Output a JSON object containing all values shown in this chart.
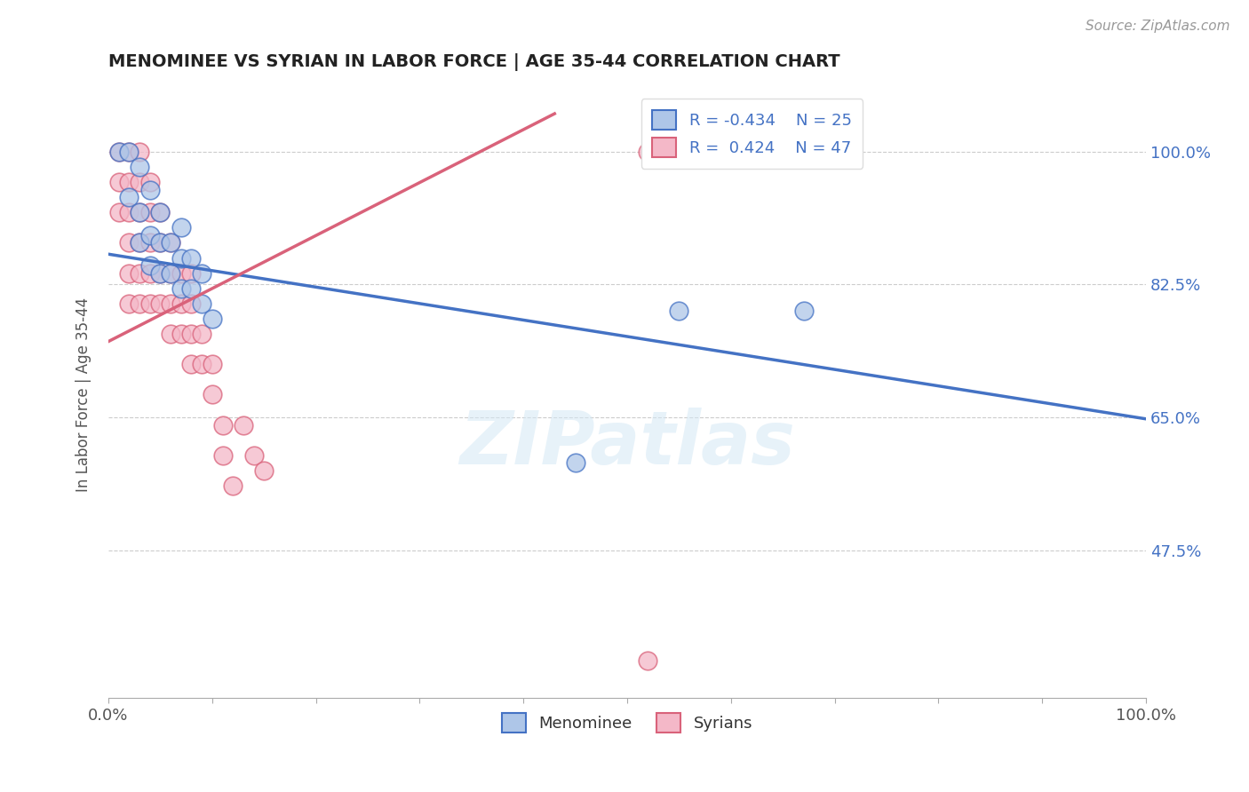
{
  "title": "MENOMINEE VS SYRIAN IN LABOR FORCE | AGE 35-44 CORRELATION CHART",
  "source_text": "Source: ZipAtlas.com",
  "ylabel": "In Labor Force | Age 35-44",
  "watermark": "ZIPatlas",
  "xlim": [
    0.0,
    1.0
  ],
  "ylim": [
    0.28,
    1.08
  ],
  "yticks": [
    0.475,
    0.65,
    0.825,
    1.0
  ],
  "ytick_labels": [
    "47.5%",
    "65.0%",
    "82.5%",
    "100.0%"
  ],
  "xtick_labels": [
    "0.0%",
    "100.0%"
  ],
  "xticks": [
    0.0,
    1.0
  ],
  "legend_R_menominee": "-0.434",
  "legend_N_menominee": "25",
  "legend_R_syrians": "0.424",
  "legend_N_syrians": "47",
  "menominee_color": "#aec6e8",
  "syrians_color": "#f4b8c8",
  "trend_menominee_color": "#4472c4",
  "trend_syrians_color": "#d9627a",
  "menominee_x": [
    0.01,
    0.02,
    0.02,
    0.03,
    0.03,
    0.03,
    0.04,
    0.04,
    0.04,
    0.05,
    0.05,
    0.05,
    0.06,
    0.06,
    0.07,
    0.07,
    0.07,
    0.08,
    0.08,
    0.09,
    0.09,
    0.1,
    0.45,
    0.55,
    0.67
  ],
  "menominee_y": [
    1.0,
    1.0,
    0.94,
    0.98,
    0.92,
    0.88,
    0.95,
    0.89,
    0.85,
    0.92,
    0.88,
    0.84,
    0.88,
    0.84,
    0.9,
    0.86,
    0.82,
    0.86,
    0.82,
    0.84,
    0.8,
    0.78,
    0.59,
    0.79,
    0.79
  ],
  "syrians_x": [
    0.01,
    0.01,
    0.01,
    0.02,
    0.02,
    0.02,
    0.02,
    0.02,
    0.02,
    0.03,
    0.03,
    0.03,
    0.03,
    0.03,
    0.03,
    0.04,
    0.04,
    0.04,
    0.04,
    0.04,
    0.05,
    0.05,
    0.05,
    0.05,
    0.06,
    0.06,
    0.06,
    0.06,
    0.07,
    0.07,
    0.07,
    0.08,
    0.08,
    0.08,
    0.08,
    0.09,
    0.09,
    0.1,
    0.1,
    0.11,
    0.11,
    0.12,
    0.13,
    0.14,
    0.15,
    0.52,
    0.52
  ],
  "syrians_y": [
    1.0,
    0.96,
    0.92,
    1.0,
    0.96,
    0.92,
    0.88,
    0.84,
    0.8,
    1.0,
    0.96,
    0.92,
    0.88,
    0.84,
    0.8,
    0.96,
    0.92,
    0.88,
    0.84,
    0.8,
    0.92,
    0.88,
    0.84,
    0.8,
    0.88,
    0.84,
    0.8,
    0.76,
    0.84,
    0.8,
    0.76,
    0.84,
    0.8,
    0.76,
    0.72,
    0.76,
    0.72,
    0.72,
    0.68,
    0.64,
    0.6,
    0.56,
    0.64,
    0.6,
    0.58,
    1.0,
    0.33
  ],
  "trend_men_x0": 0.0,
  "trend_men_x1": 1.0,
  "trend_men_y0": 0.865,
  "trend_men_y1": 0.648,
  "trend_syr_x0": 0.0,
  "trend_syr_x1": 0.43,
  "trend_syr_y0": 0.75,
  "trend_syr_y1": 1.05
}
